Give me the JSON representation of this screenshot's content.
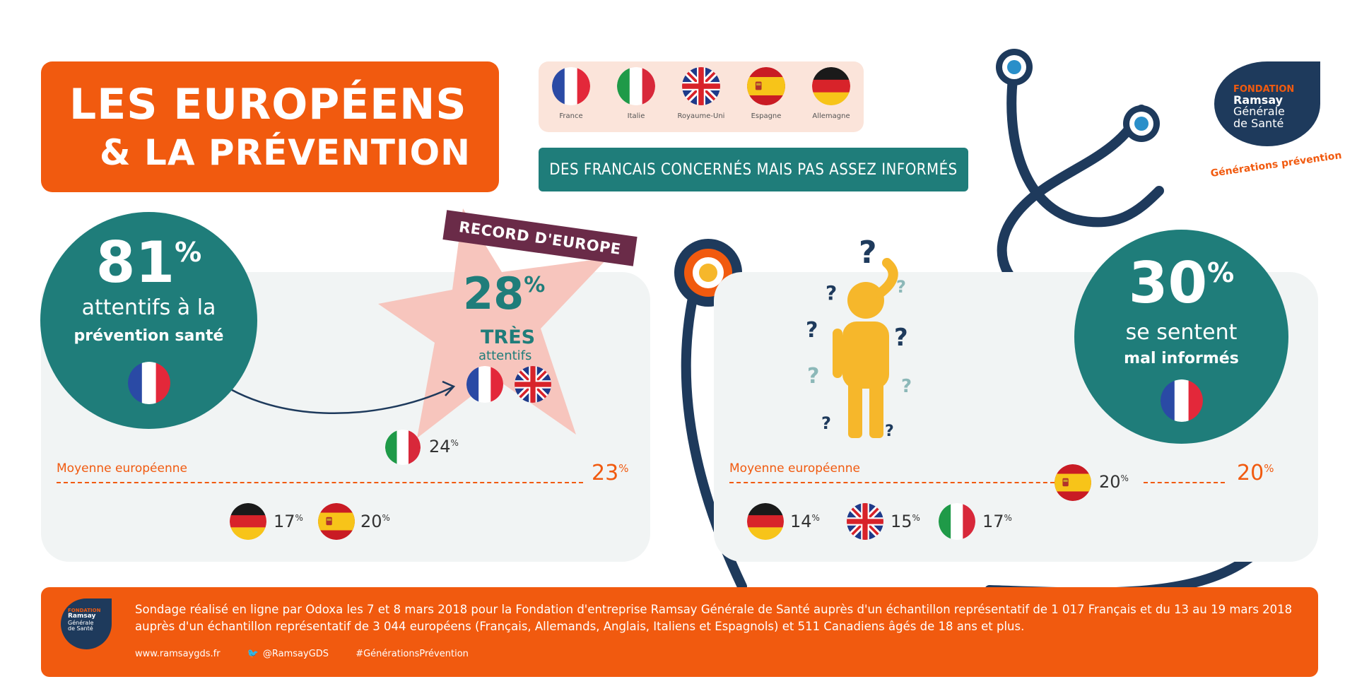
{
  "title": {
    "line1": "LES EUROPÉENS",
    "line2": "& LA PRÉVENTION"
  },
  "countries": [
    {
      "label": "France",
      "icon": "flag-france-icon"
    },
    {
      "label": "Italie",
      "icon": "flag-italy-icon"
    },
    {
      "label": "Royaume-Uni",
      "icon": "flag-uk-icon"
    },
    {
      "label": "Espagne",
      "icon": "flag-spain-icon"
    },
    {
      "label": "Allemagne",
      "icon": "flag-germany-icon"
    }
  ],
  "subtitle": "DES FRANCAIS CONCERNÉS MAIS PAS ASSEZ INFORMÉS",
  "logo": {
    "line1": "FONDATION",
    "line2": "Ramsay",
    "line3": "Générale",
    "line4": "de Santé",
    "tagline": "Générations prévention"
  },
  "left": {
    "big_value": "81",
    "big_unit": "%",
    "line1": "attentifs à la",
    "line2": "prévention santé",
    "record_label": "RECORD D'EUROPE",
    "record_value": "28",
    "record_unit": "%",
    "record_line1": "TRÈS",
    "record_line2": "attentifs",
    "average_label": "Moyenne européenne",
    "average_value": "23",
    "average_unit": "%",
    "italy_value": "24",
    "germany_value": "17",
    "spain_value": "20",
    "unit": "%"
  },
  "right": {
    "big_value": "30",
    "big_unit": "%",
    "line1": "se sentent",
    "line2": "mal informés",
    "average_label": "Moyenne européenne",
    "average_value": "20",
    "average_unit": "%",
    "spain_value": "20",
    "germany_value": "14",
    "uk_value": "15",
    "italy_value": "17",
    "unit": "%"
  },
  "footer": {
    "text": "Sondage réalisé en ligne par Odoxa les 7 et 8 mars 2018 pour la Fondation d'entreprise Ramsay Générale de Santé auprès d'un échantillon représentatif de 1 017 Français et du 13 au 19 mars 2018 auprès d'un échantillon représentatif de 3 044 européens (Français, Allemands, Anglais, Italiens et Espagnols) et 511 Canadiens âgés de 18 ans et plus.",
    "website": "www.ramsaygds.fr",
    "twitter": "@RamsayGDS",
    "hashtag": "#GénérationsPrévention"
  },
  "colors": {
    "orange": "#f15a0f",
    "teal": "#1f7d7a",
    "navy": "#1e3a5c",
    "yellow": "#f6b72b",
    "pink_star": "#f7c5bd",
    "panel_bg": "#f1f4f4"
  }
}
